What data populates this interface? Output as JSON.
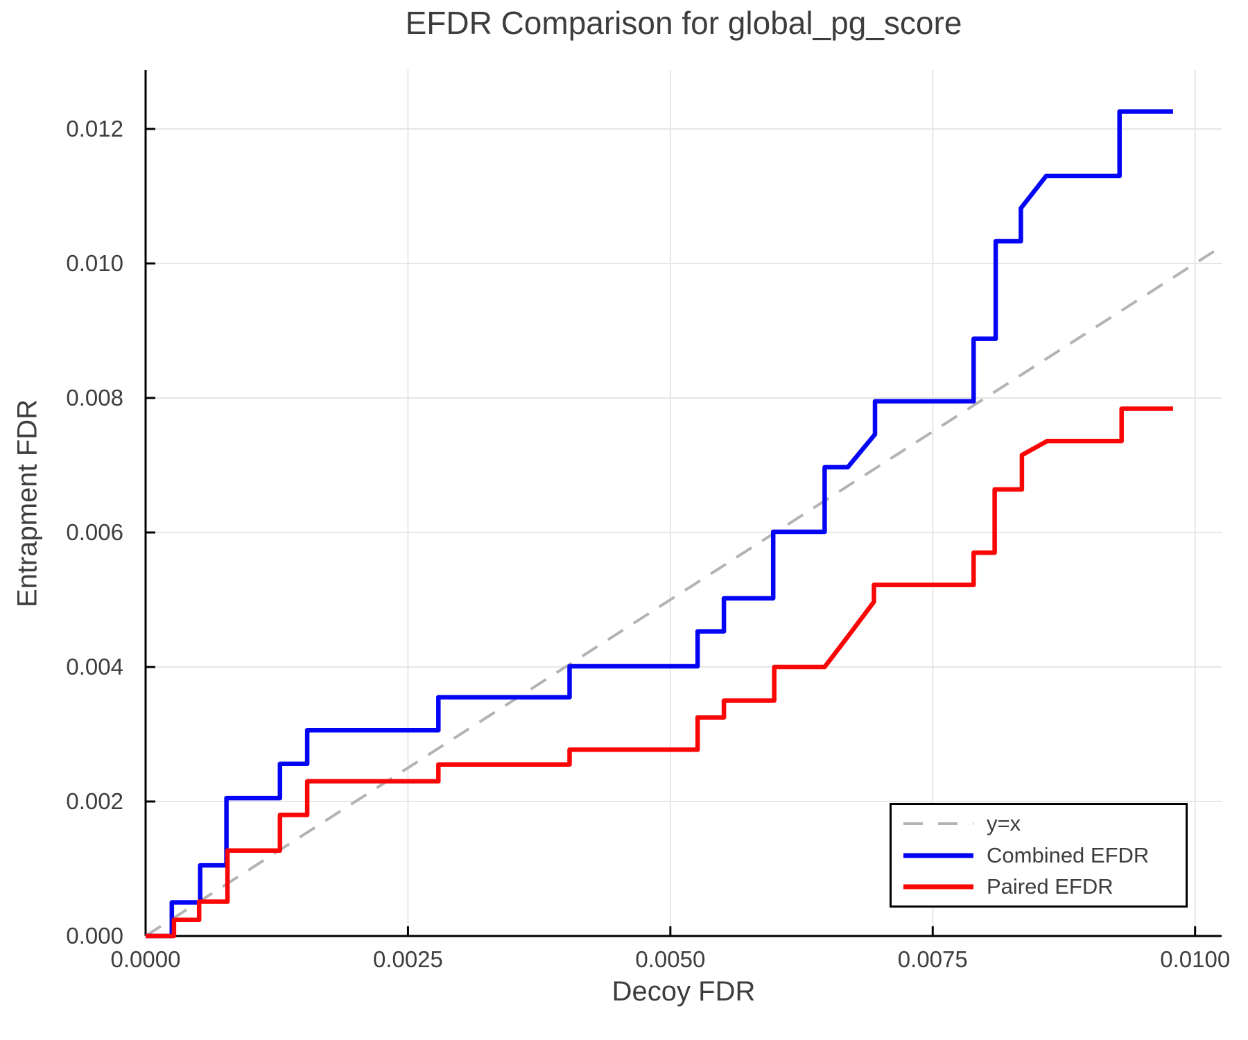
{
  "chart_data": {
    "type": "line",
    "subtype": "step",
    "title": "EFDR Comparison for global_pg_score",
    "xlabel": "Decoy FDR",
    "ylabel": "Entrapment FDR",
    "xlim": [
      0,
      0.010253
    ],
    "ylim": [
      0,
      0.012876
    ],
    "grid": true,
    "xticks": {
      "values": [
        0,
        0.0025,
        0.005,
        0.0075,
        0.01
      ],
      "labels": [
        "0.0000",
        "0.0025",
        "0.0050",
        "0.0075",
        "0.0100"
      ]
    },
    "yticks": {
      "values": [
        0,
        0.002,
        0.004,
        0.006,
        0.008,
        0.01,
        0.012
      ],
      "labels": [
        "0.000",
        "0.002",
        "0.004",
        "0.006",
        "0.008",
        "0.010",
        "0.012"
      ]
    },
    "legend": {
      "position": "lower right",
      "entries": [
        {
          "label": "y=x",
          "color": "#b3b3b3",
          "dashed": true
        },
        {
          "label": "Combined EFDR",
          "color": "#0505f5",
          "dashed": false
        },
        {
          "label": "Paired EFDR",
          "color": "#f90606",
          "dashed": false
        }
      ]
    },
    "reference_line": {
      "name": "y=x",
      "from": [
        0,
        0
      ],
      "to": [
        0.010253,
        0.010253
      ],
      "color": "#b3b3b3",
      "dashed": true
    },
    "series": [
      {
        "name": "Combined EFDR",
        "color": "#0505f5",
        "points": [
          [
            0,
            0
          ],
          [
            0.00025,
            0
          ],
          [
            0.00025,
            0.0005
          ],
          [
            0.00052,
            0.0005
          ],
          [
            0.00052,
            0.00105
          ],
          [
            0.00077,
            0.00105
          ],
          [
            0.00077,
            0.00205
          ],
          [
            0.00128,
            0.00205
          ],
          [
            0.00128,
            0.00256
          ],
          [
            0.00154,
            0.00256
          ],
          [
            0.00154,
            0.00306
          ],
          [
            0.00279,
            0.00306
          ],
          [
            0.00279,
            0.00355
          ],
          [
            0.00404,
            0.00355
          ],
          [
            0.00404,
            0.00401
          ],
          [
            0.00526,
            0.00401
          ],
          [
            0.00526,
            0.00453
          ],
          [
            0.00551,
            0.00453
          ],
          [
            0.00551,
            0.00502
          ],
          [
            0.00598,
            0.00502
          ],
          [
            0.00598,
            0.00601
          ],
          [
            0.00647,
            0.00601
          ],
          [
            0.00647,
            0.00697
          ],
          [
            0.00669,
            0.00697
          ],
          [
            0.00695,
            0.00746
          ],
          [
            0.00695,
            0.00795
          ],
          [
            0.00789,
            0.00795
          ],
          [
            0.00789,
            0.00888
          ],
          [
            0.0081,
            0.00888
          ],
          [
            0.0081,
            0.01033
          ],
          [
            0.00834,
            0.01033
          ],
          [
            0.00834,
            0.01082
          ],
          [
            0.00858,
            0.0113
          ],
          [
            0.00928,
            0.0113
          ],
          [
            0.00928,
            0.01226
          ],
          [
            0.00979,
            0.01226
          ]
        ]
      },
      {
        "name": "Paired EFDR",
        "color": "#f90606",
        "points": [
          [
            0,
            0
          ],
          [
            0.00027,
            0
          ],
          [
            0.00027,
            0.00024
          ],
          [
            0.00051,
            0.00024
          ],
          [
            0.00051,
            0.00051
          ],
          [
            0.00078,
            0.00051
          ],
          [
            0.00078,
            0.00127
          ],
          [
            0.00128,
            0.00127
          ],
          [
            0.00128,
            0.0018
          ],
          [
            0.00154,
            0.0018
          ],
          [
            0.00154,
            0.0023
          ],
          [
            0.00279,
            0.0023
          ],
          [
            0.00279,
            0.00255
          ],
          [
            0.00404,
            0.00255
          ],
          [
            0.00404,
            0.00277
          ],
          [
            0.00526,
            0.00277
          ],
          [
            0.00526,
            0.00325
          ],
          [
            0.00551,
            0.00325
          ],
          [
            0.00551,
            0.0035
          ],
          [
            0.00599,
            0.0035
          ],
          [
            0.00599,
            0.004
          ],
          [
            0.00647,
            0.004
          ],
          [
            0.0067,
            0.00447
          ],
          [
            0.0067,
            0.00447
          ],
          [
            0.00694,
            0.00497
          ],
          [
            0.00694,
            0.00522
          ],
          [
            0.00789,
            0.00522
          ],
          [
            0.00789,
            0.0057
          ],
          [
            0.00809,
            0.0057
          ],
          [
            0.00809,
            0.00664
          ],
          [
            0.00835,
            0.00664
          ],
          [
            0.00835,
            0.00715
          ],
          [
            0.00859,
            0.00736
          ],
          [
            0.0093,
            0.00736
          ],
          [
            0.0093,
            0.00784
          ],
          [
            0.00979,
            0.00784
          ]
        ]
      }
    ],
    "style": {
      "grid_color": "#e6e6e6",
      "spine_color": "#000000",
      "tick_color": "#000000",
      "text_color": "#3d3d3d",
      "background": "#ffffff"
    }
  }
}
